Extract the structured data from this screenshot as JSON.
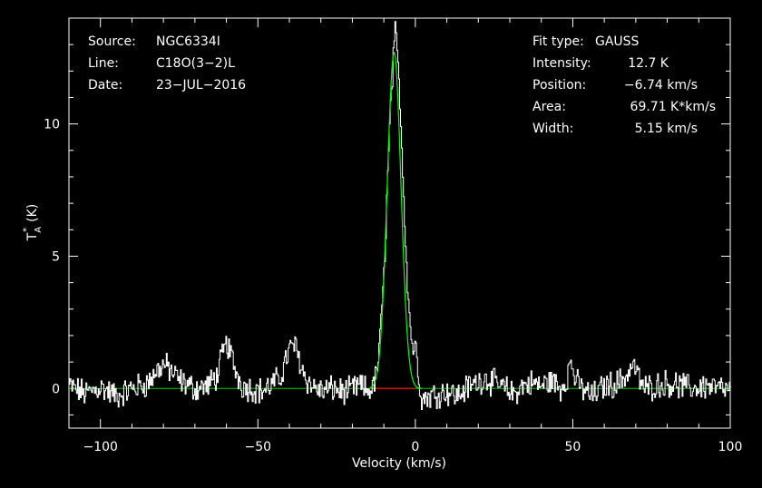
{
  "chart_data": {
    "type": "line",
    "xlabel": "Velocity (km/s)",
    "ylabel_main": "T",
    "ylabel_sub": "A",
    "ylabel_sup": "*",
    "ylabel_unit": "(K)",
    "xlim": [
      -110,
      100
    ],
    "ylim": [
      -1.5,
      14.0
    ],
    "x_ticks": [
      {
        "value": -100,
        "label": "−100"
      },
      {
        "value": -50,
        "label": "−50"
      },
      {
        "value": 0,
        "label": "0"
      },
      {
        "value": 50,
        "label": "50"
      },
      {
        "value": 100,
        "label": "100"
      }
    ],
    "y_ticks": [
      {
        "value": 0,
        "label": "0"
      },
      {
        "value": 5,
        "label": "5"
      },
      {
        "value": 10,
        "label": "10"
      }
    ],
    "header_left": [
      {
        "key": "Source:",
        "value": "NGC6334I"
      },
      {
        "key": "Line:",
        "value": "C18O(3−2)L"
      },
      {
        "key": "Date:",
        "value": "23−JUL−2016"
      }
    ],
    "header_right": [
      {
        "key": "Fit type:",
        "value": "GAUSS"
      },
      {
        "key": "Intensity:",
        "value": "12.7 K"
      },
      {
        "key": "Position:",
        "value": "−6.74 km/s"
      },
      {
        "key": "Area:",
        "value": "69.71 K*km/s"
      },
      {
        "key": "Width:",
        "value": "5.15 km/s"
      }
    ],
    "fit": {
      "peak": 12.7,
      "center": -6.74,
      "fwhm": 5.15,
      "fit_range": [
        -13.5,
        0
      ]
    },
    "series": [
      {
        "x": [
          -110,
          -105,
          -100,
          -95,
          -90,
          -85,
          -82,
          -80,
          -78,
          -75,
          -72,
          -70,
          -66,
          -63,
          -61,
          -60,
          -59,
          -57,
          -55,
          -52,
          -49,
          -46,
          -43,
          -41,
          -39,
          -38,
          -37,
          -35,
          -33,
          -30,
          -26,
          -22,
          -18,
          -15,
          -13,
          -12,
          -11,
          -10,
          -9,
          -8,
          -7,
          -6.5,
          -6,
          -5,
          -4,
          -3,
          -2,
          -1,
          0,
          1,
          2,
          4,
          7,
          10,
          13,
          16,
          19,
          22,
          25,
          28,
          31,
          34,
          37,
          40,
          43,
          46,
          48,
          49,
          50,
          51,
          53,
          56,
          60,
          64,
          67,
          69,
          70,
          71,
          73,
          76,
          80,
          84,
          88,
          92,
          96,
          100
        ],
        "y": [
          0.1,
          -0.2,
          0.05,
          -0.3,
          0,
          0.2,
          0.7,
          0.9,
          0.7,
          0.3,
          0.1,
          0,
          0.1,
          0.5,
          1.4,
          1.7,
          1.4,
          0.6,
          0.1,
          0,
          -0.1,
          0.1,
          0.4,
          1.2,
          1.7,
          1.5,
          1.1,
          0.4,
          0.1,
          -0.1,
          0,
          -0.15,
          0.1,
          -0.1,
          0.2,
          1.0,
          2.4,
          4.5,
          7.8,
          10.6,
          12.6,
          13.4,
          12.8,
          11.0,
          7.9,
          5.0,
          2.8,
          1.5,
          1.6,
          0.4,
          -0.4,
          -0.3,
          -0.2,
          -0.1,
          -0.3,
          0,
          0.2,
          0.4,
          0.2,
          0,
          -0.2,
          0.1,
          0.2,
          0.1,
          0.3,
          0,
          0.4,
          1.0,
          0.7,
          0.2,
          0,
          -0.3,
          0.1,
          0.2,
          0.5,
          0.9,
          0.7,
          0.3,
          0,
          0.1,
          0.2,
          0.1,
          0,
          0.1,
          0,
          -0.1
        ]
      }
    ],
    "colors": {
      "data": "#ffffff",
      "fit": "#00ff00",
      "baseline": "#00d000",
      "fit_base": "#ff0000",
      "axes": "#ffffff",
      "background": "#000000"
    }
  }
}
